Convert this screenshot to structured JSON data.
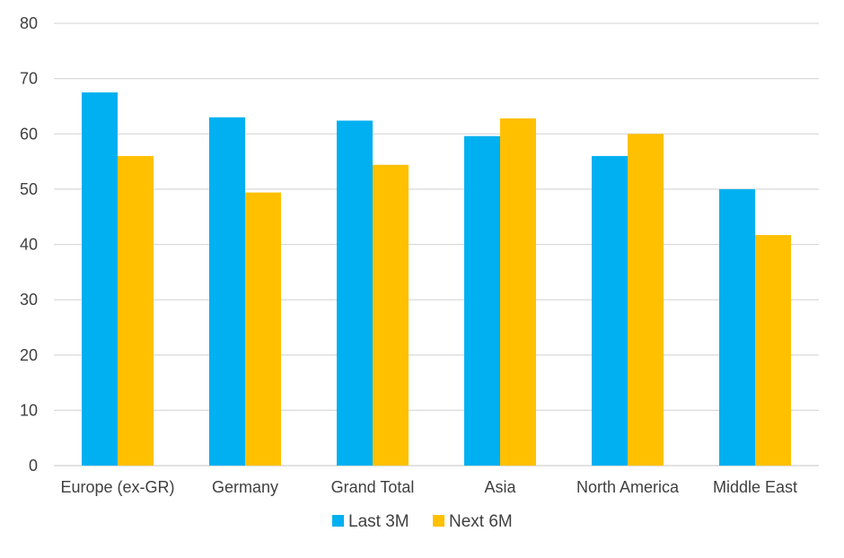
{
  "chart_data": {
    "type": "bar",
    "categories": [
      "Europe (ex-GR)",
      "Germany",
      "Grand Total",
      "Asia",
      "North America",
      "Middle East"
    ],
    "series": [
      {
        "name": "Last 3M",
        "color": "#00B0F0",
        "values": [
          67.5,
          63.0,
          62.4,
          59.6,
          56.0,
          50.0
        ]
      },
      {
        "name": "Next 6M",
        "color": "#FFC000",
        "values": [
          56.0,
          49.4,
          54.4,
          62.8,
          60.0,
          41.7
        ]
      }
    ],
    "yticks": [
      0,
      10,
      20,
      30,
      40,
      50,
      60,
      70,
      80
    ],
    "ylim": [
      0,
      80
    ],
    "grid": true,
    "legend_position": "bottom-center"
  }
}
